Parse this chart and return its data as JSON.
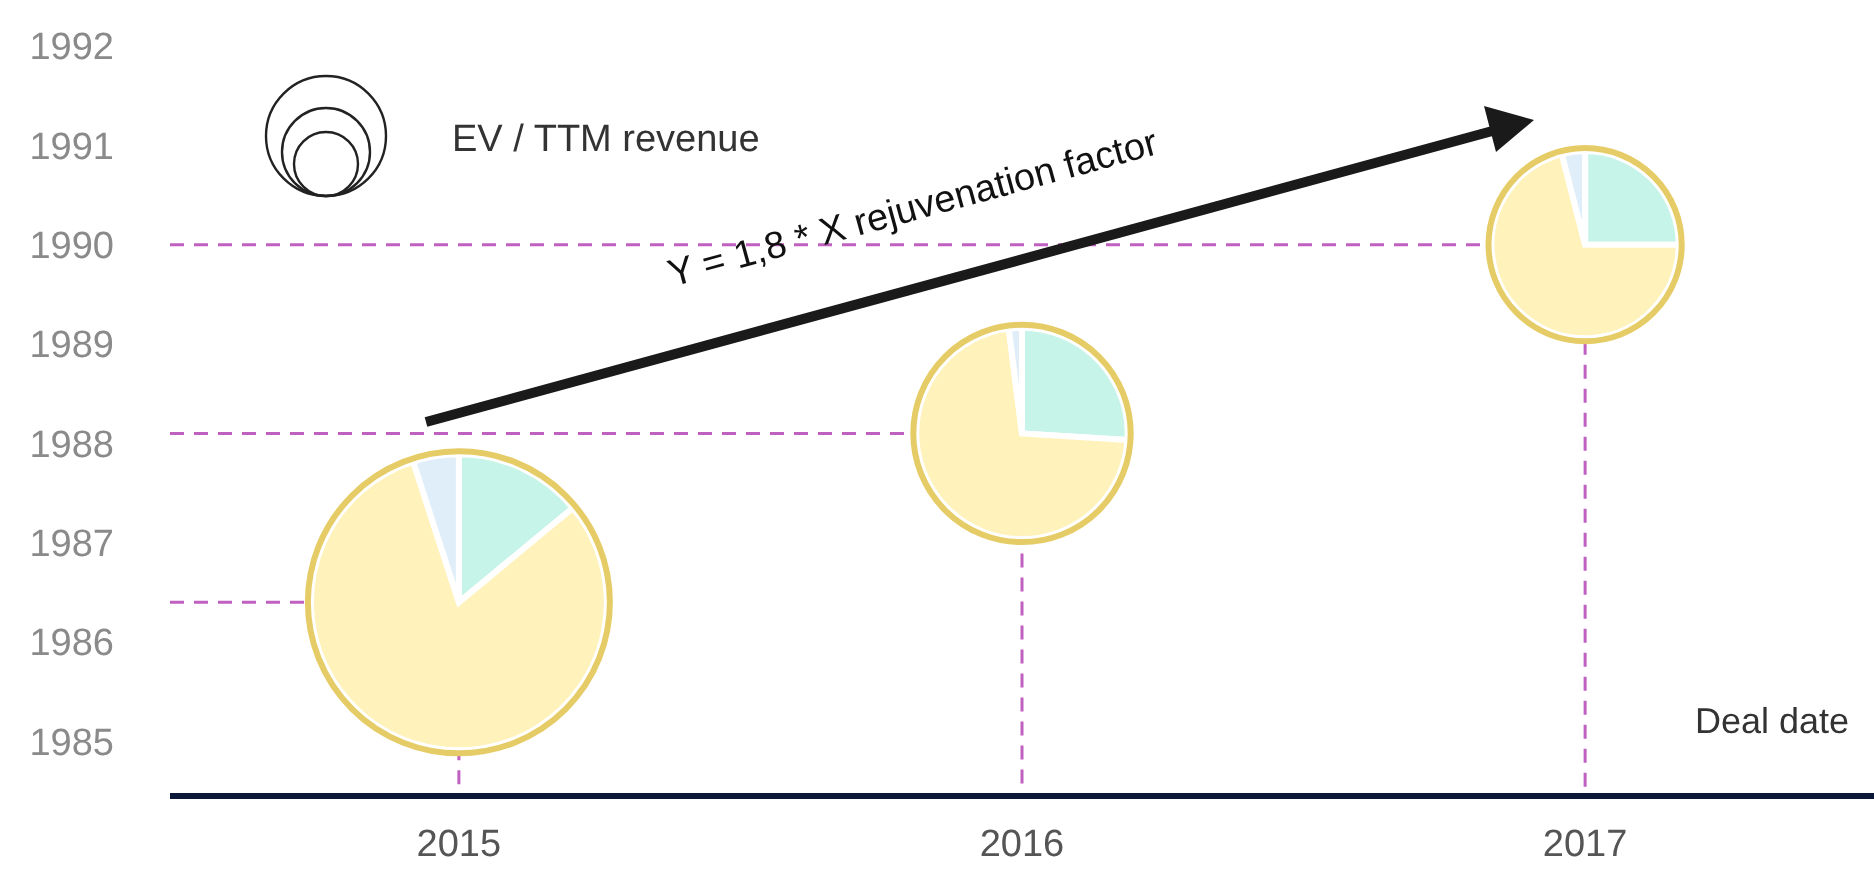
{
  "chart_data": [
    {
      "type": "bubble",
      "categories": [
        "2015",
        "2016",
        "2017"
      ],
      "values": [
        1986.4,
        1988.1,
        1990.0
      ],
      "sizes": [
        1,
        0.51,
        0.4
      ],
      "color": "#e6cc66",
      "ylim": [
        1984.45,
        1992
      ],
      "yticks": [
        1985,
        1986,
        1987,
        1988,
        1989,
        1990,
        1991,
        1992
      ],
      "xlabel": "Deal date",
      "ref_lines": [
        {
          "axis": "y",
          "value": 1986.4,
          "color": "#c060c0",
          "line_style": "dashed"
        },
        {
          "axis": "y",
          "value": 1988.1,
          "color": "#c060c0",
          "line_style": "dashed"
        },
        {
          "axis": "y",
          "value": 1990.0,
          "color": "#c060c0",
          "line_style": "dashed"
        }
      ],
      "legend_title": "EV / TTM revenue",
      "annotations": [
        "Y = 1,8 * X rejuvenation factor"
      ]
    },
    {
      "type": "pie",
      "categories": [
        null,
        null,
        null
      ],
      "values": [
        14,
        81,
        5
      ],
      "colors": [
        "#c6f4e9",
        "#fff2bb",
        "#e0eefa"
      ]
    },
    {
      "type": "pie",
      "categories": [
        null,
        null,
        null
      ],
      "values": [
        26,
        72,
        2
      ],
      "colors": [
        "#c6f4e9",
        "#fff2bb",
        "#e0eefa"
      ]
    },
    {
      "type": "pie",
      "categories": [
        null,
        null,
        null
      ],
      "values": [
        25,
        71,
        4
      ],
      "colors": [
        "#c6f4e9",
        "#fff2bb",
        "#e0eefa"
      ]
    }
  ]
}
